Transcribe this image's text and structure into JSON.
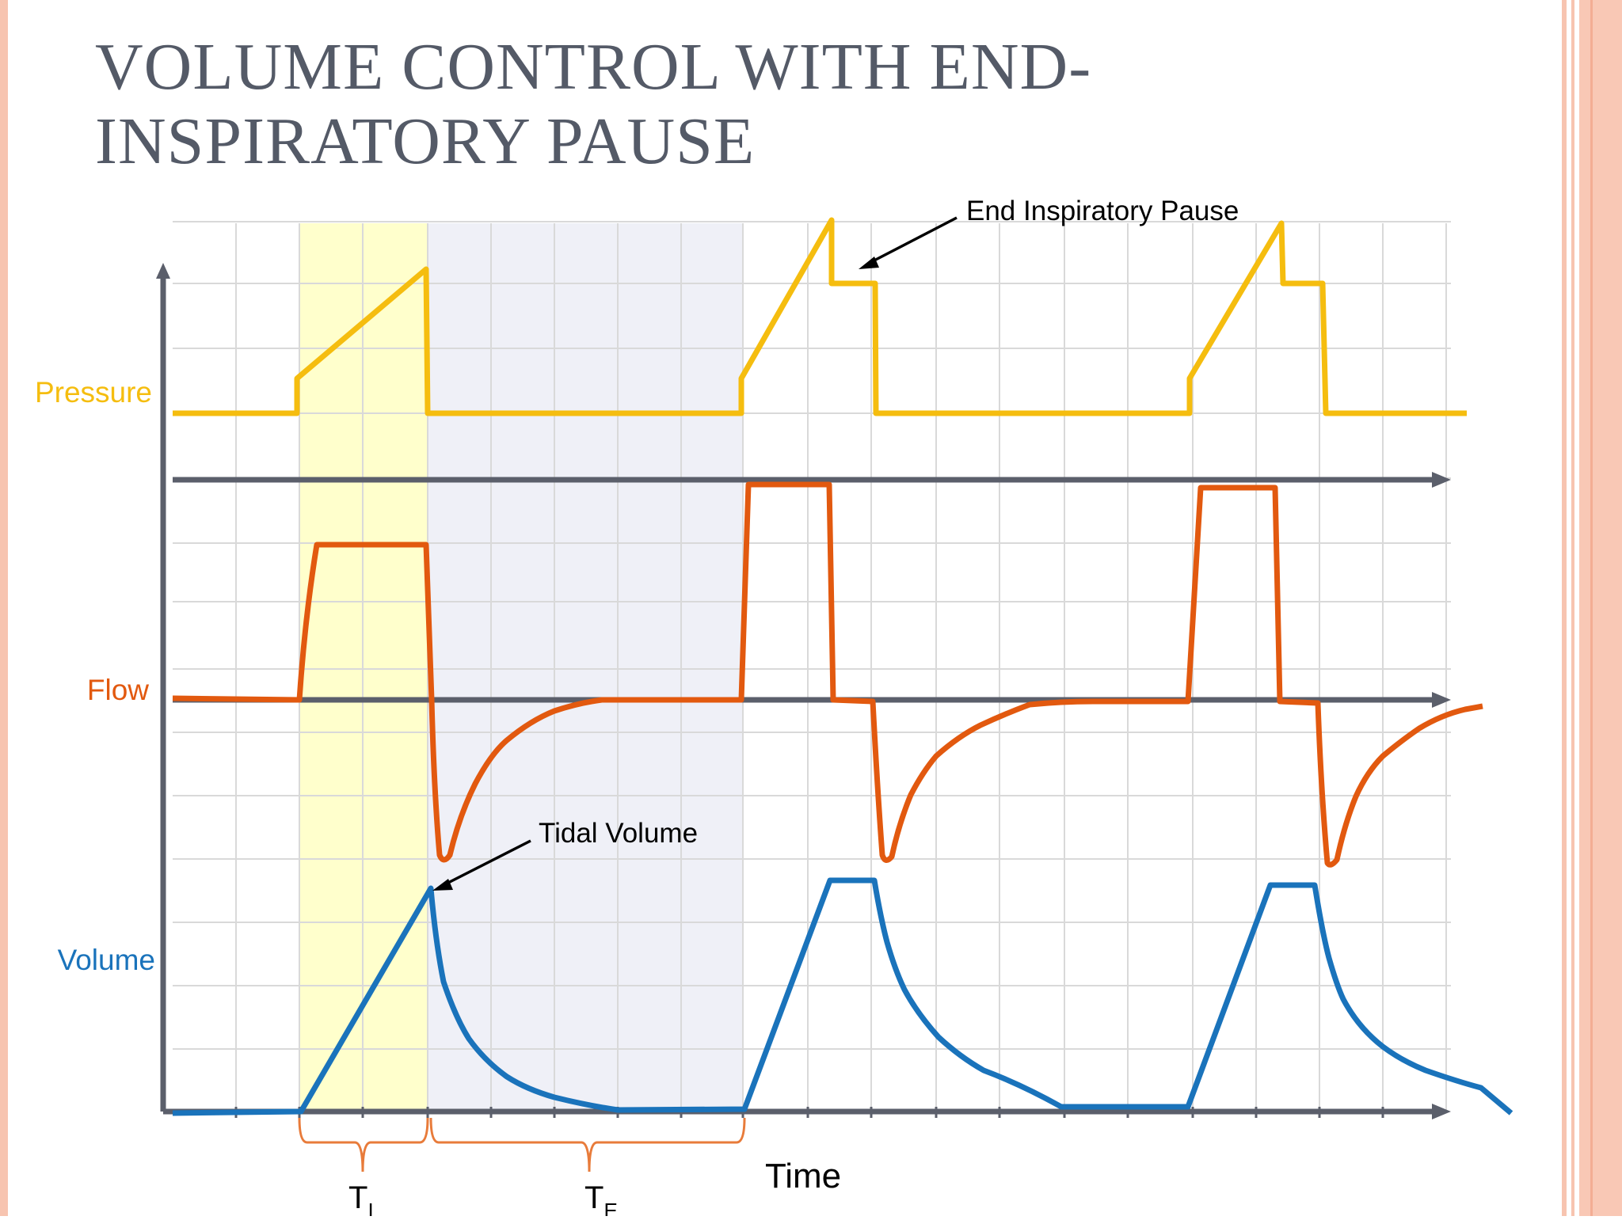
{
  "slide": {
    "title_line1": "VOLUME CONTROL WITH END-",
    "title_line2": "INSPIRATORY PAUSE"
  },
  "diagram": {
    "labels": {
      "pressure": "Pressure",
      "flow": "Flow",
      "volume": "Volume",
      "time": "Time",
      "ti_main": "T",
      "ti_sub": "I",
      "te_main": "T",
      "te_sub": "E"
    },
    "annotations": {
      "end_inspiratory_pause": "End Inspiratory Pause",
      "tidal_volume": "Tidal Volume"
    }
  },
  "colors": {
    "pressure": "#f5bd0f",
    "flow": "#e2590f",
    "volume": "#1a73bb",
    "axis": "#5b5f6b",
    "grid": "#d9d9d9",
    "inspiration_band": "#ffffcc",
    "expiration_band": "#eff0f7",
    "bracket": "#e87b3a",
    "title": "#545a67",
    "frame": "#f7c4b0"
  }
}
